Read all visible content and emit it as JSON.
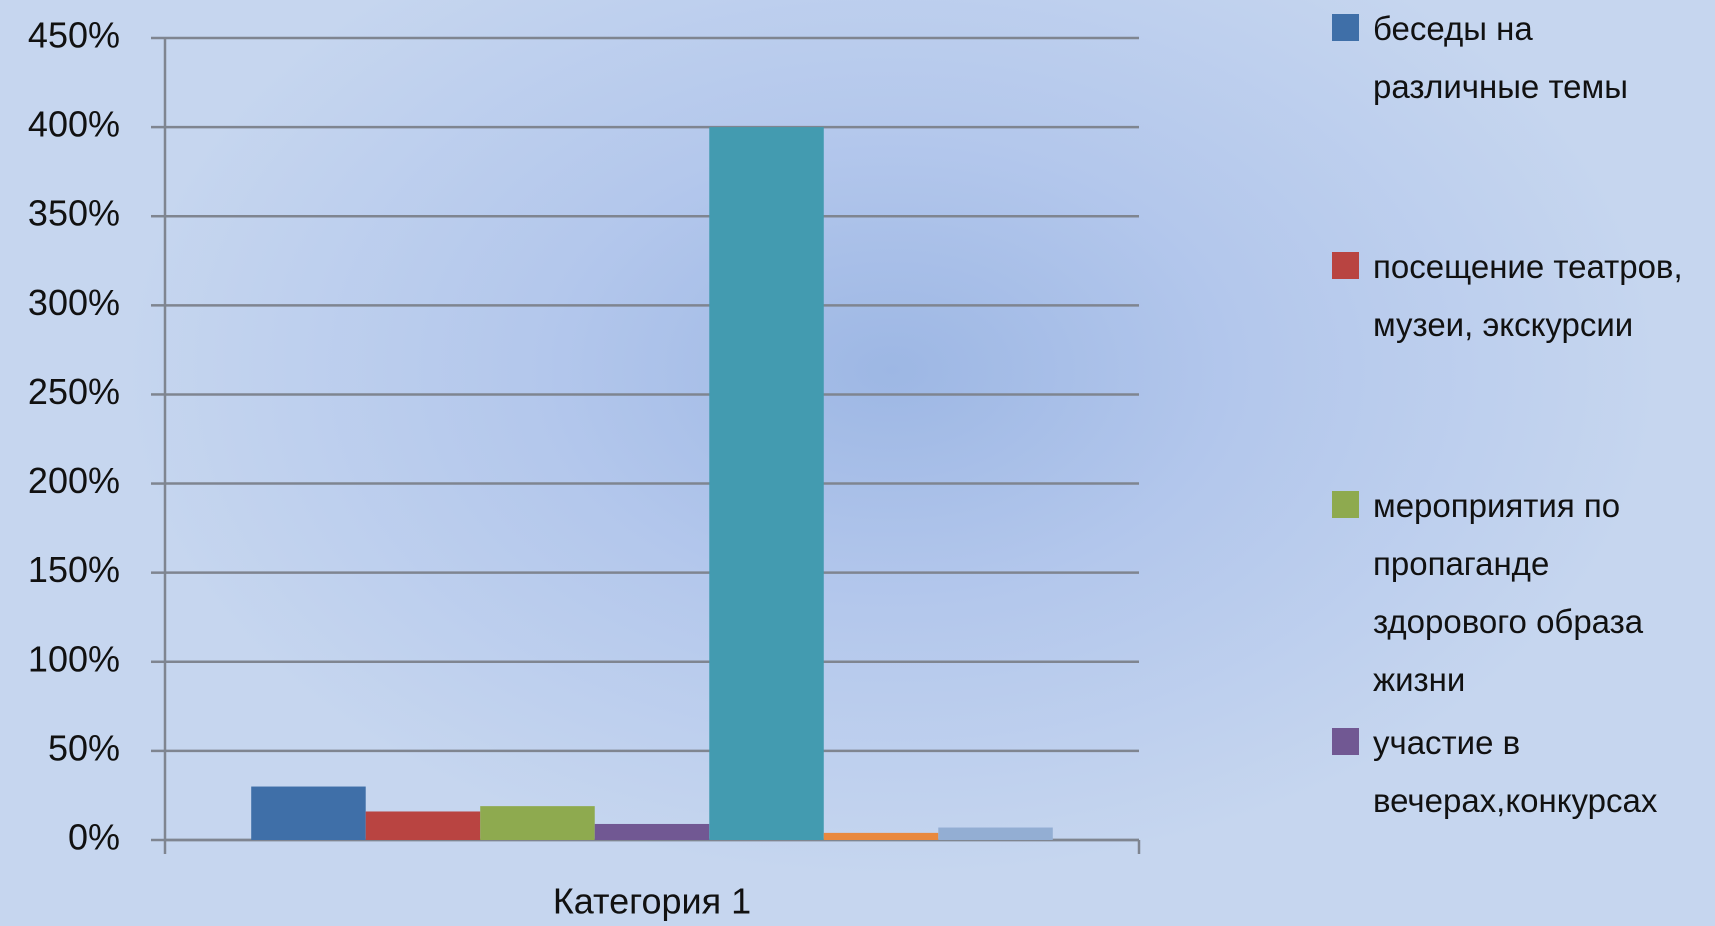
{
  "chart_data": {
    "type": "bar",
    "categories": [
      "Категория 1"
    ],
    "series": [
      {
        "name": "беседы на различные темы",
        "color": "#3f6fa8",
        "values": [
          30
        ]
      },
      {
        "name": "посещение театров, музеи, экскурсии",
        "color": "#b94441",
        "values": [
          16
        ]
      },
      {
        "name": "мероприятия по пропаганде здорового образа жизни",
        "color": "#8eaa4f",
        "values": [
          19
        ]
      },
      {
        "name": "участие в вечерах,конкурсах",
        "color": "#715893",
        "values": [
          9
        ]
      },
      {
        "color": "#439bb0",
        "values": [
          400
        ]
      },
      {
        "color": "#e9893e",
        "values": [
          4
        ]
      },
      {
        "color": "#93aed3",
        "values": [
          7
        ]
      }
    ],
    "ylim": [
      0,
      450
    ],
    "yticks": [
      {
        "value": 0,
        "label": "0%"
      },
      {
        "value": 50,
        "label": "50%"
      },
      {
        "value": 100,
        "label": "100%"
      },
      {
        "value": 150,
        "label": "150%"
      },
      {
        "value": 200,
        "label": "200%"
      },
      {
        "value": 250,
        "label": "250%"
      },
      {
        "value": 300,
        "label": "300%"
      },
      {
        "value": 350,
        "label": "350%"
      },
      {
        "value": 400,
        "label": "400%"
      },
      {
        "value": 450,
        "label": "450%"
      }
    ],
    "grid": true,
    "legend": "right"
  }
}
